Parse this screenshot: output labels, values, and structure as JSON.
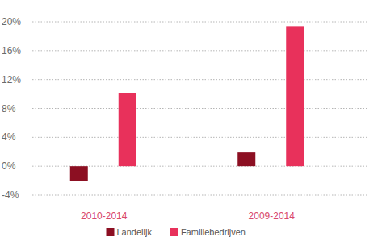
{
  "chart_data": {
    "type": "bar",
    "categories": [
      "2010-2014",
      "2009-2014"
    ],
    "series": [
      {
        "name": "Landelijk",
        "color": "#8c0f22",
        "values": [
          -2.1,
          1.9
        ]
      },
      {
        "name": "Familiebedrijven",
        "color": "#e8315b",
        "values": [
          10.1,
          19.4
        ]
      }
    ],
    "ylim": [
      -4,
      20
    ],
    "yticks": [
      {
        "value": -4,
        "label": "-4%"
      },
      {
        "value": 0,
        "label": "0%"
      },
      {
        "value": 4,
        "label": "4%"
      },
      {
        "value": 8,
        "label": "8%"
      },
      {
        "value": 12,
        "label": "12%"
      },
      {
        "value": 16,
        "label": "16%"
      },
      {
        "value": 20,
        "label": "20%"
      }
    ],
    "grid": true,
    "legend": "bottom"
  }
}
